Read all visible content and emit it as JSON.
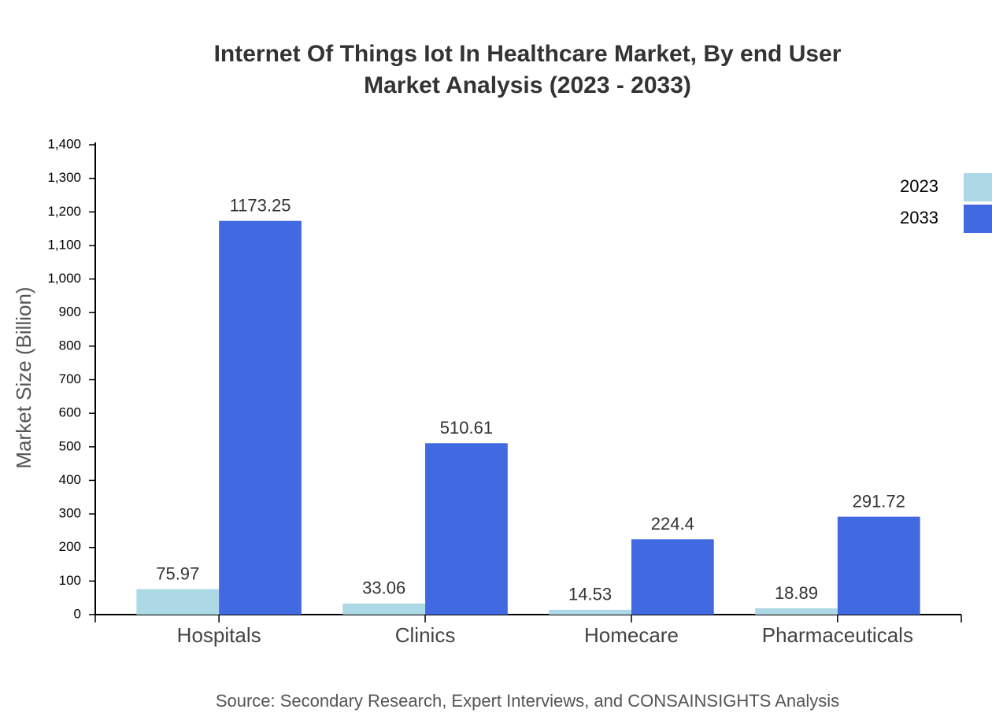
{
  "chart_data": {
    "type": "bar",
    "title": [
      "Internet Of Things Iot In Healthcare Market, By end User",
      "Market Analysis (2023 - 2033)"
    ],
    "y_label": "Market Size (Billion)",
    "source": "Source: Secondary Research, Expert Interviews, and CONSAINSIGHTS Analysis",
    "categories": [
      "Hospitals",
      "Clinics",
      "Homecare",
      "Pharmaceuticals"
    ],
    "series": [
      {
        "name": "2023",
        "color": "#add8e6",
        "values": [
          75.97,
          33.06,
          14.53,
          18.89
        ]
      },
      {
        "name": "2033",
        "color": "#4169e1",
        "values": [
          1173.25,
          510.61,
          224.4,
          291.72
        ]
      }
    ],
    "ylim": [
      0,
      1400
    ],
    "yticks": [
      0,
      100,
      200,
      300,
      400,
      500,
      600,
      700,
      800,
      900,
      {
        "value": 1000,
        "label": "1,000"
      },
      {
        "value": 1100,
        "label": "1,100"
      },
      {
        "value": 1200,
        "label": "1,200"
      },
      {
        "value": 1300,
        "label": "1,300"
      },
      {
        "value": 1400,
        "label": "1,400"
      }
    ],
    "legend": "top-right"
  }
}
